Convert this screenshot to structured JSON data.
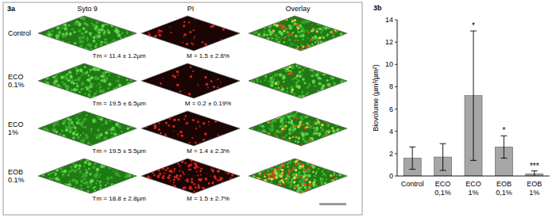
{
  "figure_a": {
    "label": "3a",
    "columns": [
      "Syto 9",
      "PI",
      "Overlay"
    ],
    "rows": [
      {
        "label": "Control",
        "tm": "Tm = 11.4 ± 1.2µm",
        "m": "M = 1.5 ± 2.6%"
      },
      {
        "label": "ECO 0.1%",
        "tm": "Tm = 19.5 ± 6.5µm",
        "m": "M = 0.2 ± 0.19%"
      },
      {
        "label": "ECO 1%",
        "tm": "Tm = 19.5 ± 5.5µm",
        "m": "M = 1.4 ± 2.3%"
      },
      {
        "label": "EOB 0.1%",
        "tm": "Tm = 18.8 ± 2.8µm",
        "m": "M = 1.5 ± 2.7%"
      }
    ]
  },
  "chart_data": {
    "type": "bar",
    "title": "3b",
    "y_label": "Biovolume (µm³/µm²)",
    "categories": [
      "Control",
      "ECO 0,1%",
      "ECO 1%",
      "EOB 0,1%",
      "EOB 1%"
    ],
    "values": [
      1.6,
      1.7,
      7.2,
      2.6,
      0.2
    ],
    "errors": [
      1.0,
      1.2,
      5.8,
      1.0,
      0.25
    ],
    "significance": [
      null,
      null,
      "*",
      "*",
      "***"
    ],
    "color": "#a6a6a6",
    "ylim": [
      0,
      14
    ],
    "yticks": [
      0,
      2,
      4,
      6,
      8,
      10,
      12,
      14
    ],
    "grid": false
  }
}
